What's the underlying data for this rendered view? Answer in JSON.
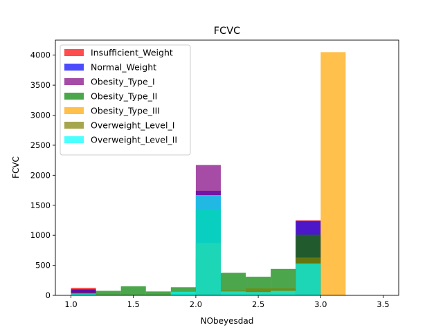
{
  "chart_data": {
    "type": "bar",
    "title": "FCVC",
    "xlabel": "NObeyesdad",
    "ylabel": "FCVC",
    "xlim": [
      0.875,
      3.625
    ],
    "ylim": [
      0,
      4250
    ],
    "xticks": [
      1.0,
      1.5,
      2.0,
      2.5,
      3.0,
      3.5
    ],
    "xtick_labels": [
      "1.0",
      "1.5",
      "2.0",
      "2.5",
      "3.0",
      "3.5"
    ],
    "yticks": [
      0,
      500,
      1000,
      1500,
      2000,
      2500,
      3000,
      3500,
      4000
    ],
    "ytick_labels": [
      "0",
      "500",
      "1000",
      "1500",
      "2000",
      "2500",
      "3000",
      "3500",
      "4000"
    ],
    "bin_width": 0.2,
    "legend_position": "upper-left",
    "series": [
      {
        "name": "Insufficient_Weight",
        "color": "#ff0000",
        "bins": [
          {
            "x": 1.0,
            "y": 125
          },
          {
            "x": 2.0,
            "y": 620
          },
          {
            "x": 2.8,
            "y": 1250
          }
        ]
      },
      {
        "name": "Normal_Weight",
        "color": "#0000ff",
        "bins": [
          {
            "x": 1.0,
            "y": 100
          },
          {
            "x": 2.0,
            "y": 1740
          },
          {
            "x": 2.8,
            "y": 1240
          }
        ]
      },
      {
        "name": "Obesity_Type_I",
        "color": "#800080",
        "bins": [
          {
            "x": 1.0,
            "y": 80
          },
          {
            "x": 2.0,
            "y": 2170
          },
          {
            "x": 2.8,
            "y": 1000
          }
        ]
      },
      {
        "name": "Obesity_Type_II",
        "color": "#008000",
        "bins": [
          {
            "x": 1.0,
            "y": 40
          },
          {
            "x": 1.2,
            "y": 75
          },
          {
            "x": 1.4,
            "y": 150
          },
          {
            "x": 1.6,
            "y": 65
          },
          {
            "x": 1.8,
            "y": 135
          },
          {
            "x": 2.0,
            "y": 1430
          },
          {
            "x": 2.2,
            "y": 375
          },
          {
            "x": 2.4,
            "y": 310
          },
          {
            "x": 2.6,
            "y": 440
          },
          {
            "x": 2.8,
            "y": 1010
          }
        ]
      },
      {
        "name": "Obesity_Type_III",
        "color": "#ffa500",
        "bins": [
          {
            "x": 2.0,
            "y": 0
          },
          {
            "x": 3.0,
            "y": 4050
          }
        ]
      },
      {
        "name": "Overweight_Level_I",
        "color": "#808000",
        "bins": [
          {
            "x": 1.0,
            "y": 40
          },
          {
            "x": 2.0,
            "y": 870
          },
          {
            "x": 2.2,
            "y": 80
          },
          {
            "x": 2.4,
            "y": 115
          },
          {
            "x": 2.6,
            "y": 115
          },
          {
            "x": 2.8,
            "y": 630
          }
        ]
      },
      {
        "name": "Overweight_Level_II",
        "color": "#00ffff",
        "bins": [
          {
            "x": 1.0,
            "y": 30
          },
          {
            "x": 1.8,
            "y": 60
          },
          {
            "x": 2.0,
            "y": 1670
          },
          {
            "x": 2.2,
            "y": 65
          },
          {
            "x": 2.4,
            "y": 55
          },
          {
            "x": 2.6,
            "y": 75
          },
          {
            "x": 2.8,
            "y": 530
          }
        ]
      }
    ]
  }
}
